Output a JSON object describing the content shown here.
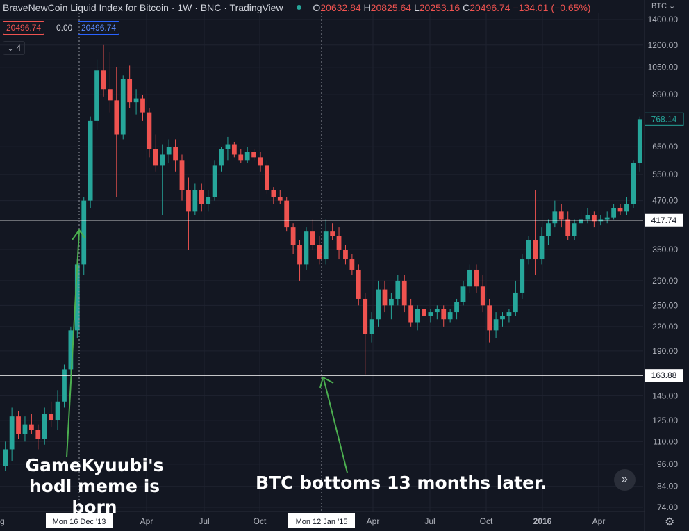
{
  "header": {
    "title": "BraveNewCoin Liquid Index for Bitcoin · 1W · BNC · TradingView",
    "open_label": "O",
    "open": "20632.84",
    "high_label": "H",
    "high": "20825.64",
    "low_label": "L",
    "low": "20253.16",
    "close_label": "C",
    "close": "20496.74 −134.01 (−0.65%)"
  },
  "pills": {
    "bid": "20496.74",
    "spread": "0.00",
    "ask": "20496.74"
  },
  "indicators_toggle": "⌄ 4",
  "currency_label": "BTC ⌄",
  "colors": {
    "bg": "#131722",
    "up": "#26a69a",
    "down": "#ef5350",
    "grid": "#1f2330",
    "text": "#b2b5be",
    "annotation_arrow": "#4caf50"
  },
  "y_axis_ticks": [
    "1400.00",
    "1200.00",
    "1050.00",
    "890.00",
    "650.00",
    "550.00",
    "470.00",
    "350.00",
    "290.00",
    "250.00",
    "220.00",
    "190.00",
    "145.00",
    "125.00",
    "110.00",
    "96.00",
    "84.00",
    "74.00"
  ],
  "x_axis_ticks": [
    "Apr",
    "Jul",
    "Oct",
    "Apr",
    "Jul",
    "Oct",
    "2016",
    "Apr"
  ],
  "x_axis_partial_label": "g",
  "crosshair_labels": [
    "Mon 16 Dec '13",
    "Mon 12 Jan '15"
  ],
  "horizontal_levels": [
    "417.74",
    "163.88"
  ],
  "last_price_label": "768.14",
  "annotations": {
    "hodl": "GameKyuubi's hodl meme is born",
    "bottom": "BTC bottoms 13 months later."
  },
  "chart_data": {
    "type": "candlestick",
    "interval": "1W",
    "x_start": "2013-07",
    "x_end": "2016-06",
    "y_scale": "log",
    "ylim": [
      70,
      1450
    ],
    "series": [
      {
        "name": "BraveNewCoin Liquid Index for Bitcoin",
        "values": [
          [
            95,
            110,
            92,
            105
          ],
          [
            105,
            135,
            98,
            128
          ],
          [
            128,
            132,
            112,
            115
          ],
          [
            115,
            128,
            110,
            122
          ],
          [
            122,
            130,
            115,
            118
          ],
          [
            118,
            122,
            105,
            112
          ],
          [
            112,
            135,
            108,
            130
          ],
          [
            130,
            140,
            120,
            125
          ],
          [
            125,
            150,
            118,
            140
          ],
          [
            140,
            175,
            135,
            170
          ],
          [
            170,
            220,
            160,
            215
          ],
          [
            215,
            330,
            205,
            320
          ],
          [
            320,
            480,
            300,
            470
          ],
          [
            470,
            780,
            450,
            760
          ],
          [
            760,
            1100,
            720,
            1030
          ],
          [
            1030,
            1200,
            880,
            920
          ],
          [
            920,
            1150,
            800,
            860
          ],
          [
            860,
            1050,
            480,
            700
          ],
          [
            700,
            1000,
            680,
            980
          ],
          [
            980,
            1060,
            820,
            850
          ],
          [
            850,
            920,
            790,
            870
          ],
          [
            870,
            890,
            760,
            800
          ],
          [
            800,
            820,
            610,
            640
          ],
          [
            640,
            700,
            560,
            580
          ],
          [
            580,
            660,
            430,
            620
          ],
          [
            620,
            680,
            590,
            650
          ],
          [
            650,
            680,
            560,
            600
          ],
          [
            600,
            620,
            470,
            500
          ],
          [
            500,
            540,
            350,
            440
          ],
          [
            440,
            520,
            430,
            500
          ],
          [
            500,
            520,
            440,
            460
          ],
          [
            460,
            500,
            440,
            480
          ],
          [
            480,
            600,
            470,
            580
          ],
          [
            580,
            650,
            560,
            640
          ],
          [
            640,
            690,
            600,
            660
          ],
          [
            660,
            670,
            610,
            620
          ],
          [
            620,
            640,
            590,
            600
          ],
          [
            600,
            650,
            590,
            630
          ],
          [
            630,
            640,
            600,
            610
          ],
          [
            610,
            630,
            560,
            580
          ],
          [
            580,
            600,
            490,
            500
          ],
          [
            500,
            510,
            460,
            480
          ],
          [
            480,
            500,
            460,
            470
          ],
          [
            470,
            480,
            390,
            400
          ],
          [
            400,
            410,
            340,
            360
          ],
          [
            360,
            370,
            290,
            320
          ],
          [
            320,
            400,
            310,
            390
          ],
          [
            390,
            420,
            350,
            360
          ],
          [
            360,
            380,
            320,
            330
          ],
          [
            330,
            420,
            320,
            390
          ],
          [
            390,
            410,
            370,
            380
          ],
          [
            380,
            400,
            330,
            350
          ],
          [
            350,
            360,
            320,
            330
          ],
          [
            330,
            340,
            300,
            310
          ],
          [
            310,
            320,
            250,
            260
          ],
          [
            260,
            270,
            165,
            210
          ],
          [
            210,
            240,
            200,
            230
          ],
          [
            230,
            290,
            220,
            275
          ],
          [
            275,
            290,
            240,
            250
          ],
          [
            250,
            270,
            230,
            260
          ],
          [
            260,
            300,
            250,
            290
          ],
          [
            290,
            300,
            240,
            250
          ],
          [
            250,
            260,
            220,
            225
          ],
          [
            225,
            250,
            215,
            245
          ],
          [
            245,
            250,
            230,
            235
          ],
          [
            235,
            245,
            225,
            240
          ],
          [
            240,
            250,
            230,
            245
          ],
          [
            245,
            250,
            220,
            230
          ],
          [
            230,
            245,
            225,
            240
          ],
          [
            240,
            260,
            230,
            255
          ],
          [
            255,
            290,
            250,
            280
          ],
          [
            280,
            320,
            270,
            310
          ],
          [
            310,
            320,
            270,
            280
          ],
          [
            280,
            300,
            240,
            250
          ],
          [
            250,
            260,
            200,
            215
          ],
          [
            215,
            240,
            205,
            230
          ],
          [
            230,
            240,
            220,
            235
          ],
          [
            235,
            245,
            225,
            240
          ],
          [
            240,
            290,
            235,
            270
          ],
          [
            270,
            340,
            260,
            330
          ],
          [
            330,
            380,
            320,
            370
          ],
          [
            370,
            500,
            300,
            330
          ],
          [
            330,
            400,
            320,
            380
          ],
          [
            380,
            420,
            360,
            410
          ],
          [
            410,
            470,
            400,
            440
          ],
          [
            440,
            460,
            400,
            420
          ],
          [
            420,
            440,
            370,
            380
          ],
          [
            380,
            420,
            370,
            410
          ],
          [
            410,
            440,
            400,
            420
          ],
          [
            420,
            450,
            410,
            430
          ],
          [
            430,
            440,
            400,
            415
          ],
          [
            415,
            430,
            405,
            420
          ],
          [
            420,
            440,
            410,
            425
          ],
          [
            425,
            460,
            420,
            450
          ],
          [
            450,
            460,
            430,
            440
          ],
          [
            440,
            480,
            430,
            460
          ],
          [
            460,
            600,
            450,
            590
          ],
          [
            590,
            780,
            560,
            768
          ]
        ]
      }
    ]
  }
}
